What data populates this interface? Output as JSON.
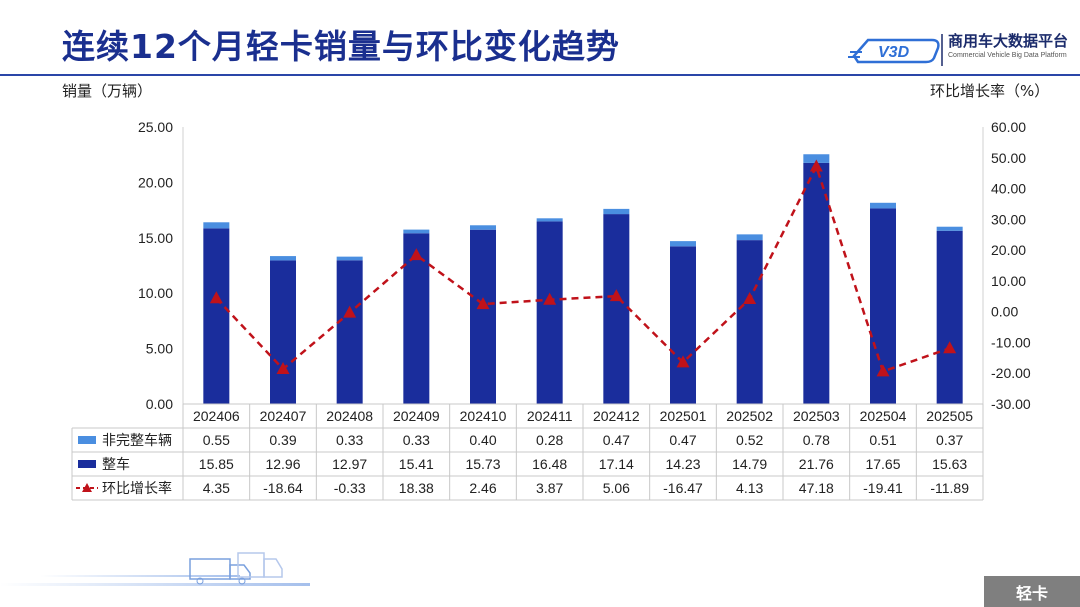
{
  "title": "连续12个月轻卡销量与环比变化趋势",
  "logo": {
    "cn": "商用车大数据平台",
    "en": "Commercial Vehicle Big Data Platform"
  },
  "footer_label": "轻卡",
  "colors": {
    "incomplete": "#4a8ee0",
    "complete": "#1a2d9c",
    "mom": "#c0121a",
    "title": "#1a2f8f"
  },
  "chart_data": {
    "type": "bar",
    "stacked": true,
    "ylabel_left": "销量（万辆）",
    "ylabel_right": "环比增长率（%）",
    "ylim_left": [
      0,
      25
    ],
    "ylim_right": [
      -30,
      60
    ],
    "yticks_left": [
      "25.00",
      "20.00",
      "15.00",
      "10.00",
      "5.00",
      "0.00"
    ],
    "yticks_right": [
      "60.00",
      "50.00",
      "40.00",
      "30.00",
      "20.00",
      "10.00",
      "0.00",
      "-10.00",
      "-20.00",
      "-30.00"
    ],
    "categories": [
      "202406",
      "202407",
      "202408",
      "202409",
      "202410",
      "202411",
      "202412",
      "202501",
      "202502",
      "202503",
      "202504",
      "202505"
    ],
    "series": [
      {
        "name": "非完整车辆",
        "type": "bar",
        "axis": "left",
        "values": [
          0.55,
          0.39,
          0.33,
          0.33,
          0.4,
          0.28,
          0.47,
          0.47,
          0.52,
          0.78,
          0.51,
          0.37
        ],
        "labels": [
          "0.55",
          "0.39",
          "0.33",
          "0.33",
          "0.40",
          "0.28",
          "0.47",
          "0.47",
          "0.52",
          "0.78",
          "0.51",
          "0.37"
        ]
      },
      {
        "name": "整车",
        "type": "bar",
        "axis": "left",
        "values": [
          15.85,
          12.96,
          12.97,
          15.41,
          15.73,
          16.48,
          17.14,
          14.23,
          14.79,
          21.76,
          17.65,
          15.63
        ],
        "labels": [
          "15.85",
          "12.96",
          "12.97",
          "15.41",
          "15.73",
          "16.48",
          "17.14",
          "14.23",
          "14.79",
          "21.76",
          "17.65",
          "15.63"
        ]
      },
      {
        "name": "环比增长率",
        "type": "line",
        "axis": "right",
        "values": [
          4.35,
          -18.64,
          -0.33,
          18.38,
          2.46,
          3.87,
          5.06,
          -16.47,
          4.13,
          47.18,
          -19.41,
          -11.89
        ],
        "labels": [
          "4.35",
          "-18.64",
          "-0.33",
          "18.38",
          "2.46",
          "3.87",
          "5.06",
          "-16.47",
          "4.13",
          "47.18",
          "-19.41",
          "-11.89"
        ]
      }
    ],
    "grid": false,
    "legend": "table-below"
  }
}
